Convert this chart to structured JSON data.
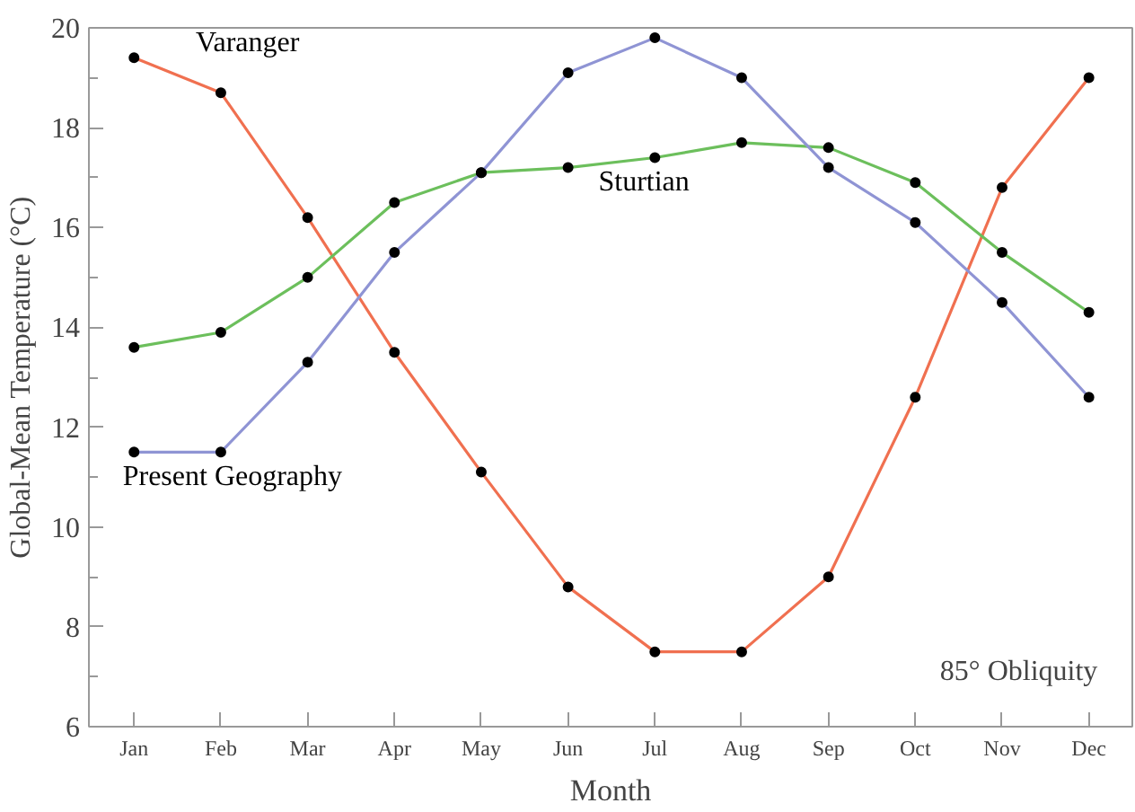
{
  "chart_data": {
    "type": "line",
    "xlabel": "Month",
    "ylabel": "Global-Mean Temperature (°C)",
    "categories": [
      "Jan",
      "Feb",
      "Mar",
      "Apr",
      "May",
      "Jun",
      "Jul",
      "Aug",
      "Sep",
      "Oct",
      "Nov",
      "Dec"
    ],
    "ylim": [
      6,
      20
    ],
    "yticks": [
      6,
      {
        "value": 7,
        "label": null
      },
      8,
      {
        "value": 9,
        "label": null
      },
      10,
      {
        "value": 11,
        "label": null
      },
      12,
      {
        "value": 13,
        "label": null
      },
      14,
      {
        "value": 15,
        "label": null
      },
      16,
      {
        "value": 17,
        "label": null
      },
      18,
      {
        "value": 19,
        "label": null
      },
      20
    ],
    "series": [
      {
        "name": "Varanger",
        "color": "#f07050",
        "values": [
          19.4,
          18.7,
          16.2,
          13.5,
          11.1,
          8.8,
          7.5,
          7.5,
          9.0,
          12.6,
          16.8,
          19.0
        ]
      },
      {
        "name": "Sturtian",
        "color": "#6cbf5c",
        "values": [
          13.6,
          13.9,
          15.0,
          16.5,
          17.1,
          17.2,
          17.4,
          17.7,
          17.6,
          16.9,
          15.5,
          14.3
        ]
      },
      {
        "name": "Present Geography",
        "color": "#8f94d4",
        "values": [
          11.5,
          11.5,
          13.3,
          15.5,
          17.1,
          19.1,
          19.8,
          19.0,
          17.2,
          16.1,
          14.5,
          12.6
        ]
      }
    ],
    "annotations": [
      "85° Obliquity"
    ],
    "grid": false,
    "marker": "circle",
    "line_style": "solid"
  }
}
